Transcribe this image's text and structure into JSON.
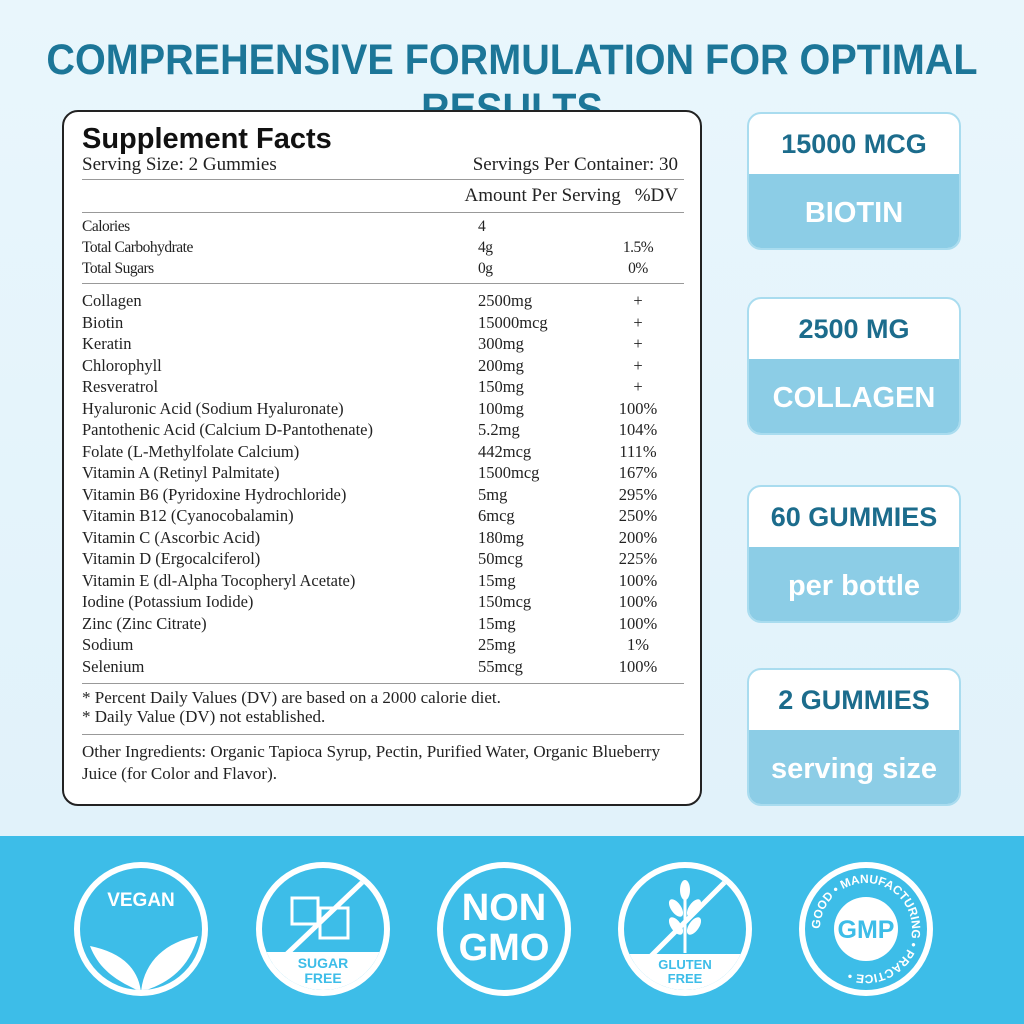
{
  "title": "COMPREHENSIVE FORMULATION FOR OPTIMAL RESULTS",
  "facts": {
    "heading": "Supplement Facts",
    "serving_size": "Serving Size: 2 Gummies",
    "servings_per_container": "Servings Per Container: 30",
    "col_amount": "Amount Per Serving",
    "col_dv": "%DV",
    "basic": [
      {
        "name": "Calories",
        "amount": "4",
        "dv": ""
      },
      {
        "name": "Total Carbohydrate",
        "amount": "4g",
        "dv": "1.5%"
      },
      {
        "name": "Total Sugars",
        "amount": "0g",
        "dv": "0%"
      }
    ],
    "nutrients": [
      {
        "name": "Collagen",
        "amount": "2500mg",
        "dv": "+"
      },
      {
        "name": "Biotin",
        "amount": "15000mcg",
        "dv": "+"
      },
      {
        "name": "Keratin",
        "amount": "300mg",
        "dv": "+"
      },
      {
        "name": "Chlorophyll",
        "amount": "200mg",
        "dv": "+"
      },
      {
        "name": "Resveratrol",
        "amount": "150mg",
        "dv": "+"
      },
      {
        "name": "Hyaluronic Acid (Sodium Hyaluronate)",
        "amount": "100mg",
        "dv": "100%"
      },
      {
        "name": "Pantothenic Acid (Calcium D-Pantothenate)",
        "amount": "5.2mg",
        "dv": "104%"
      },
      {
        "name": "Folate (L-Methylfolate Calcium)",
        "amount": "442mcg",
        "dv": "111%"
      },
      {
        "name": "Vitamin A (Retinyl Palmitate)",
        "amount": "1500mcg",
        "dv": "167%"
      },
      {
        "name": "Vitamin B6 (Pyridoxine Hydrochloride)",
        "amount": "5mg",
        "dv": "295%"
      },
      {
        "name": "Vitamin B12 (Cyanocobalamin)",
        "amount": "6mcg",
        "dv": "250%"
      },
      {
        "name": "Vitamin C (Ascorbic Acid)",
        "amount": "180mg",
        "dv": "200%"
      },
      {
        "name": "Vitamin D (Ergocalciferol)",
        "amount": "50mcg",
        "dv": "225%"
      },
      {
        "name": "Vitamin E (dl-Alpha Tocopheryl Acetate)",
        "amount": "15mg",
        "dv": "100%"
      },
      {
        "name": "Iodine (Potassium Iodide)",
        "amount": "150mcg",
        "dv": "100%"
      },
      {
        "name": "Zinc (Zinc Citrate)",
        "amount": "15mg",
        "dv": "100%"
      },
      {
        "name": "Sodium",
        "amount": "25mg",
        "dv": "1%"
      },
      {
        "name": "Selenium",
        "amount": "55mcg",
        "dv": "100%"
      }
    ],
    "footnote1": "* Percent Daily Values (DV) are based on a 2000 calorie diet.",
    "footnote2": "* Daily Value (DV) not established.",
    "other_ingredients": "Other Ingredients: Organic Tapioca Syrup, Pectin, Purified Water, Organic  Blueberry Juice (for Color and Flavor)."
  },
  "badges": [
    {
      "top": "15000 MCG",
      "bottom": "BIOTIN"
    },
    {
      "top": "2500 MG",
      "bottom": "COLLAGEN"
    },
    {
      "top": "60 GUMMIES",
      "bottom": "per bottle"
    },
    {
      "top": "2 GUMMIES",
      "bottom": "serving size"
    }
  ],
  "icons": {
    "vegan": "VEGAN",
    "sugar_free": [
      "SUGAR",
      "FREE"
    ],
    "non_gmo": [
      "NON",
      "GMO"
    ],
    "gluten_free": [
      "GLUTEN",
      "FREE"
    ],
    "gmp": {
      "center": "GMP",
      "ring": "GOOD • MANUFACTURING • PRACTICE •"
    }
  },
  "colors": {
    "title": "#1c7698",
    "band": "#3dbde8",
    "badge_bottom": "#8ccde6"
  }
}
